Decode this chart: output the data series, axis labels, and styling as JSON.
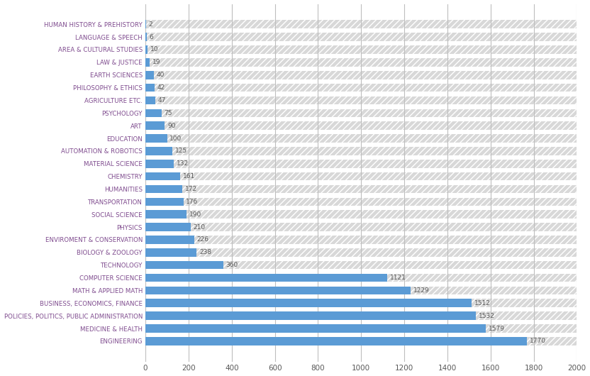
{
  "categories": [
    "HUMAN HISTORY & PREHISTORY",
    "LANGUAGE & SPEECH",
    "AREA & CULTURAL STUDIES",
    "LAW & JUSTICE",
    "EARTH SCIENCES",
    "PHILOSOPHY & ETHICS",
    "AGRICULTURE ETC.",
    "PSYCHOLOGY",
    "ART",
    "EDUCATION",
    "AUTOMATION & ROBOTICS",
    "MATERIAL SCIENCE",
    "CHEMISTRY",
    "HUMANITIES",
    "TRANSPORTATION",
    "SOCIAL SCIENCE",
    "PHYSICS",
    "ENVIROMENT & CONSERVATION",
    "BIOLOGY & ZOOLOGY",
    "TECHNOLOGY",
    "COMPUTER SCIENCE",
    "MATH & APPLIED MATH",
    "BUSINESS, ECONOMICS, FINANCE",
    "POLICIES, POLITICS, PUBLIC ADMINISTRATION",
    "MEDICINE & HEALTH",
    "ENGINEERING"
  ],
  "values": [
    2,
    6,
    10,
    19,
    40,
    42,
    47,
    75,
    90,
    100,
    125,
    132,
    161,
    172,
    176,
    190,
    210,
    226,
    238,
    360,
    1121,
    1229,
    1512,
    1532,
    1579,
    1770
  ],
  "bar_color": "#5B9BD5",
  "background_color": "#FFFFFF",
  "hatch_color": "#D8D8D8",
  "grid_color": "#BEBEBE",
  "label_color": "#7F4B8E",
  "value_color": "#595959",
  "xlim": [
    0,
    2000
  ],
  "xticks": [
    0,
    200,
    400,
    600,
    800,
    1000,
    1200,
    1400,
    1600,
    1800,
    2000
  ],
  "bar_height": 0.65,
  "figsize": [
    8.32,
    5.3
  ],
  "dpi": 100
}
